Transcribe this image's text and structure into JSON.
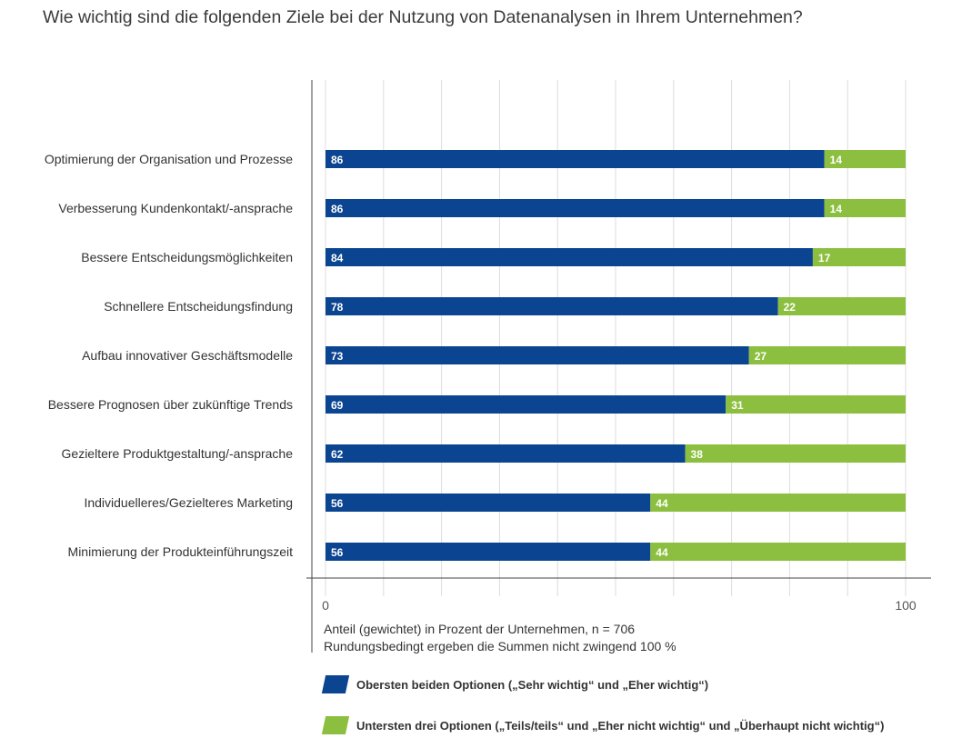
{
  "page": {
    "title": "Wie wichtig sind die folgenden Ziele bei der Nutzung von Datenanalysen in Ihrem Unternehmen?",
    "note_line1": "Anteil (gewichtet) in Prozent der Unternehmen, n = 706",
    "note_line2": "Rundungsbedingt ergeben die Summen nicht zwingend 100 %"
  },
  "colors": {
    "top_two": "#0b4490",
    "bottom_three": "#8cbf3f"
  },
  "legend": {
    "top_two": "Obersten beiden Optionen („Sehr wichtig“ und „Eher wichtig“)",
    "bottom_three": "Untersten drei Optionen („Teils/teils“ und „Eher nicht wichtig“ und „Überhaupt nicht wichtig“)"
  },
  "chart_data": {
    "type": "bar",
    "orientation": "horizontal",
    "stacked": true,
    "title": "Wie wichtig sind die folgenden Ziele bei der Nutzung von Datenanalysen in Ihrem Unternehmen?",
    "xlabel": "Anteil (gewichtet) in Prozent der Unternehmen, n = 706",
    "xlim": [
      0,
      100
    ],
    "xticks": [
      "0",
      "100"
    ],
    "grid": true,
    "legend_position": "bottom",
    "categories": [
      "Optimierung der Organisation und Prozesse",
      "Verbesserung Kundenkontakt/-ansprache",
      "Bessere Entscheidungsmöglichkeiten",
      "Schnellere Entscheidungsfindung",
      "Aufbau innovativer Geschäftsmodelle",
      "Bessere Prognosen über zukünftige Trends",
      "Gezieltere Produktgestaltung/-ansprache",
      "Individuelleres/Gezielteres Marketing",
      "Minimierung der Produkteinführungszeit"
    ],
    "series": [
      {
        "name": "Obersten beiden Optionen („Sehr wichtig“ und „Eher wichtig“)",
        "values": [
          86,
          86,
          84,
          78,
          73,
          69,
          62,
          56,
          56
        ]
      },
      {
        "name": "Untersten drei Optionen („Teils/teils“ und „Eher nicht wichtig“ und „Überhaupt nicht wichtig“)",
        "values": [
          14,
          14,
          17,
          22,
          27,
          31,
          38,
          44,
          44
        ]
      }
    ]
  }
}
